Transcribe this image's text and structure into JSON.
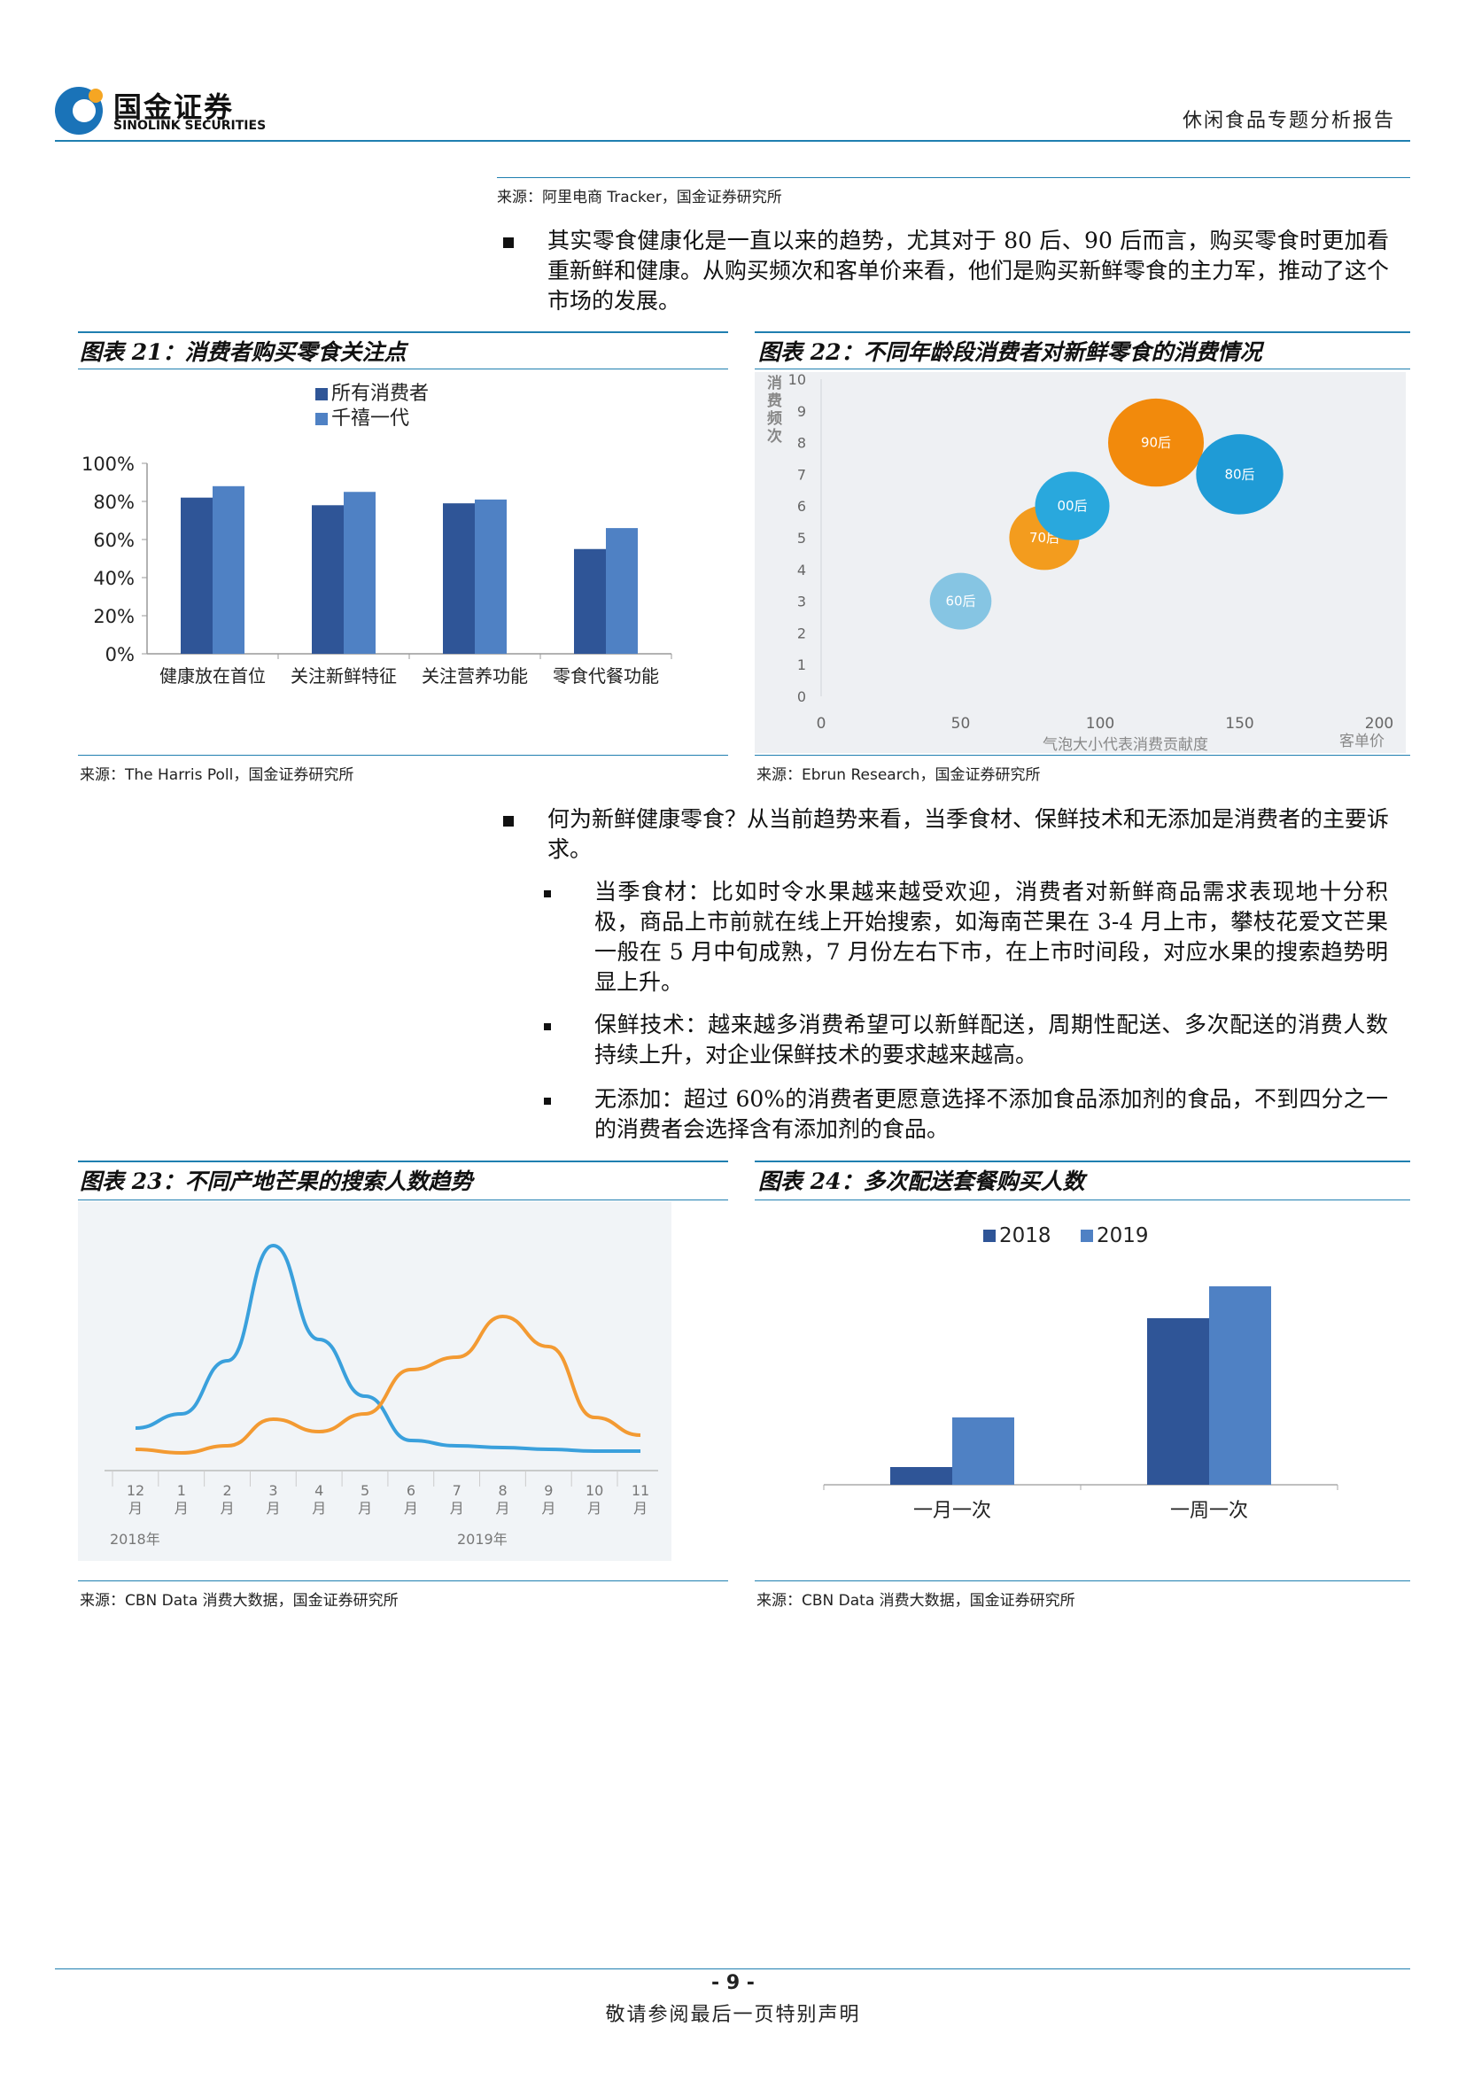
{
  "header": {
    "logo_cn": "国金证券",
    "logo_en": "SINOLINK SECURITIES",
    "report_title": "休闲食品专题分析报告"
  },
  "source_top": "来源：阿里电商 Tracker，国金证券研究所",
  "para1": "其实零食健康化是一直以来的趋势，尤其对于 80 后、90 后而言，购买零食时更加看重新鲜和健康。从购买频次和客单价来看，他们是购买新鲜零食的主力军，推动了这个市场的发展。",
  "fig21": {
    "title": "图表 21：消费者购买零食关注点",
    "source": "来源：The Harris Poll，国金证券研究所"
  },
  "fig22": {
    "title": "图表 22：不同年龄段消费者对新鲜零食的消费情况",
    "source": "来源：Ebrun Research，国金证券研究所"
  },
  "para2": "何为新鲜健康零食？从当前趋势来看，当季食材、保鲜技术和无添加是消费者的主要诉求。",
  "sub_bullets": [
    "当季食材：比如时令水果越来越受欢迎，消费者对新鲜商品需求表现地十分积极，商品上市前就在线上开始搜索，如海南芒果在 3-4 月上市，攀枝花爱文芒果一般在 5 月中旬成熟，7 月份左右下市，在上市时间段，对应水果的搜索趋势明显上升。",
    "保鲜技术：越来越多消费希望可以新鲜配送，周期性配送、多次配送的消费人数持续上升，对企业保鲜技术的要求越来越高。",
    "无添加：超过 60%的消费者更愿意选择不添加食品添加剂的食品，不到四分之一的消费者会选择含有添加剂的食品。"
  ],
  "fig23": {
    "title": "图表 23：不同产地芒果的搜索人数趋势",
    "source": "来源：CBN Data 消费大数据，国金证券研究所"
  },
  "fig24": {
    "title": "图表 24：多次配送套餐购买人数",
    "source": "来源：CBN Data 消费大数据，国金证券研究所"
  },
  "footer": {
    "page": "- 9 -",
    "note": "敬请参阅最后一页特别声明"
  },
  "chart_data": [
    {
      "id": "fig21",
      "type": "bar",
      "categories": [
        "健康放在首位",
        "关注新鲜特征",
        "关注营养功能",
        "零食代餐功能"
      ],
      "series": [
        {
          "name": "所有消费者",
          "values": [
            82,
            78,
            79,
            55
          ],
          "color": "#2f5597"
        },
        {
          "name": "千禧一代",
          "values": [
            88,
            85,
            81,
            66
          ],
          "color": "#4f81c4"
        }
      ],
      "yticks": [
        "0%",
        "20%",
        "40%",
        "60%",
        "80%",
        "100%"
      ],
      "ylim": [
        0,
        100
      ],
      "legend": "top-left"
    },
    {
      "id": "fig22",
      "type": "scatter",
      "ylabel": "消费频次",
      "xlabel": "气泡大小代表消费贡献度",
      "xunit": "客单价",
      "xticks": [
        0,
        50,
        100,
        150,
        200
      ],
      "yticks": [
        0,
        1,
        2,
        3,
        4,
        5,
        6,
        7,
        8,
        9,
        10
      ],
      "xlim": [
        0,
        200
      ],
      "ylim": [
        0,
        10
      ],
      "points": [
        {
          "label": "60后",
          "x": 50,
          "y": 3,
          "size": 0.6,
          "color": "#86c5e3"
        },
        {
          "label": "70后",
          "x": 80,
          "y": 5,
          "size": 0.7,
          "color": "#f39c1e"
        },
        {
          "label": "00后",
          "x": 90,
          "y": 6,
          "size": 0.75,
          "color": "#29a8dd"
        },
        {
          "label": "90后",
          "x": 120,
          "y": 8,
          "size": 1.0,
          "color": "#f28a0c"
        },
        {
          "label": "80后",
          "x": 150,
          "y": 7,
          "size": 0.9,
          "color": "#1f9bd6"
        }
      ]
    },
    {
      "id": "fig23",
      "type": "line",
      "x_labels": [
        "12",
        "1",
        "2",
        "3",
        "4",
        "5",
        "6",
        "7",
        "8",
        "9",
        "10",
        "11"
      ],
      "x_unit": "月",
      "year_labels": [
        "2018年",
        "2019年"
      ],
      "series": [
        {
          "color": "#3aa0dc",
          "values": [
            22,
            30,
            60,
            125,
            72,
            40,
            15,
            12,
            11,
            10,
            9,
            9
          ]
        },
        {
          "color": "#f39a32",
          "values": [
            10,
            8,
            12,
            27,
            20,
            30,
            55,
            62,
            85,
            68,
            28,
            18
          ]
        }
      ]
    },
    {
      "id": "fig24",
      "type": "bar",
      "categories": [
        "一月一次",
        "一周一次"
      ],
      "series": [
        {
          "name": "2018",
          "values": [
            5,
            47
          ],
          "color": "#2f5597"
        },
        {
          "name": "2019",
          "values": [
            19,
            56
          ],
          "color": "#4f81c4"
        }
      ],
      "legend": "top-center"
    }
  ]
}
